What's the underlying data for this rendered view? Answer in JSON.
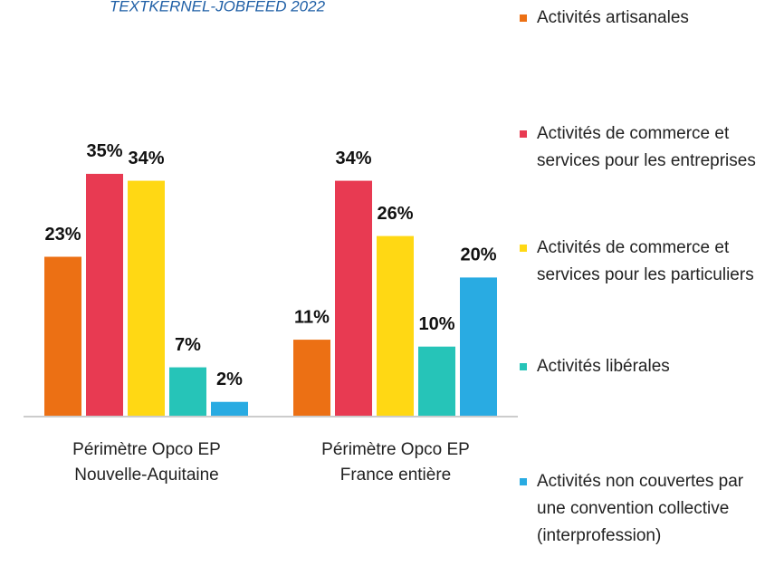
{
  "chart_data": {
    "type": "bar",
    "title": "TEXTKERNEL-JOBFEED 2022",
    "categories": [
      [
        "Périmètre Opco EP",
        "Nouvelle-Aquitaine"
      ],
      [
        "Périmètre Opco EP",
        "France entière"
      ]
    ],
    "series": [
      {
        "name": "Activités artisanales",
        "color": "#ec7014",
        "values": [
          23,
          11
        ],
        "value_labels": [
          "23%",
          "11%"
        ]
      },
      {
        "name": "Activités de commerce et services pour les entreprises",
        "color": "#e83a52",
        "values": [
          35,
          34
        ],
        "value_labels": [
          "35%",
          "34%"
        ]
      },
      {
        "name": "Activités de commerce et services pour les particuliers",
        "color": "#ffd814",
        "values": [
          34,
          26
        ],
        "value_labels": [
          "34%",
          "26%"
        ]
      },
      {
        "name": "Activités libérales",
        "color": "#26c4b8",
        "values": [
          7,
          10
        ],
        "value_labels": [
          "7%",
          "10%"
        ]
      },
      {
        "name": "Activités non couvertes par une convention collective (interprofession)",
        "color": "#29abe2",
        "values": [
          2,
          20
        ],
        "value_labels": [
          "2%",
          "20%"
        ]
      }
    ],
    "legend": "right"
  }
}
